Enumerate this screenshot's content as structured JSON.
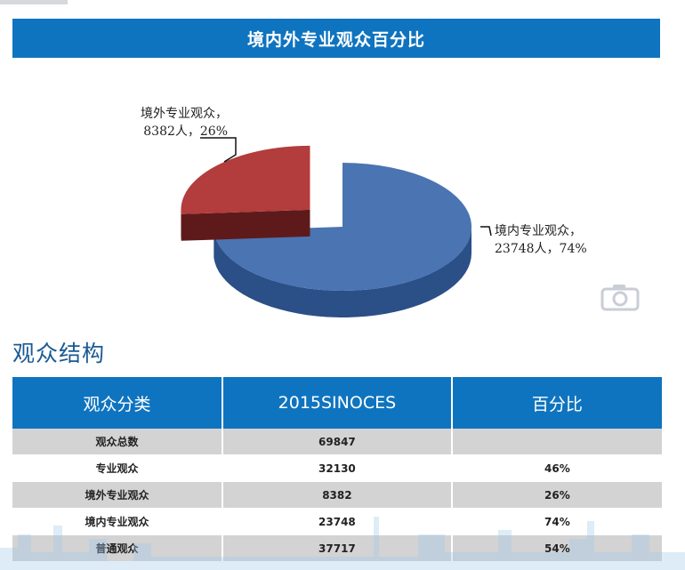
{
  "banner": {
    "title": "境内外专业观众百分比"
  },
  "chart_data": {
    "type": "pie",
    "title": "境内外专业观众百分比",
    "slices": [
      {
        "name": "境内专业观众",
        "value": 23748,
        "percent": 74,
        "color": "#4a74b2",
        "dark": "#2b4f87",
        "exploded": false
      },
      {
        "name": "境外专业观众",
        "value": 8382,
        "percent": 26,
        "color": "#b33c3c",
        "dark": "#5e1a1a",
        "exploded": true
      }
    ]
  },
  "labels": {
    "foreign_line1": "境外专业观众，",
    "foreign_line2": "8382人，26%",
    "domestic_line1": "境内专业观众，",
    "domestic_line2": "23748人，74%"
  },
  "section": {
    "title": "观众结构"
  },
  "table": {
    "headers": [
      "观众分类",
      "2015SINOCES",
      "百分比"
    ],
    "rows": [
      [
        "观众总数",
        "69847",
        ""
      ],
      [
        "专业观众",
        "32130",
        "46%"
      ],
      [
        "境外专业观众",
        "8382",
        "26%"
      ],
      [
        "境内专业观众",
        "23748",
        "74%"
      ],
      [
        "普通观众",
        "37717",
        "54%"
      ]
    ]
  },
  "icons": {
    "camera": "camera-icon"
  }
}
